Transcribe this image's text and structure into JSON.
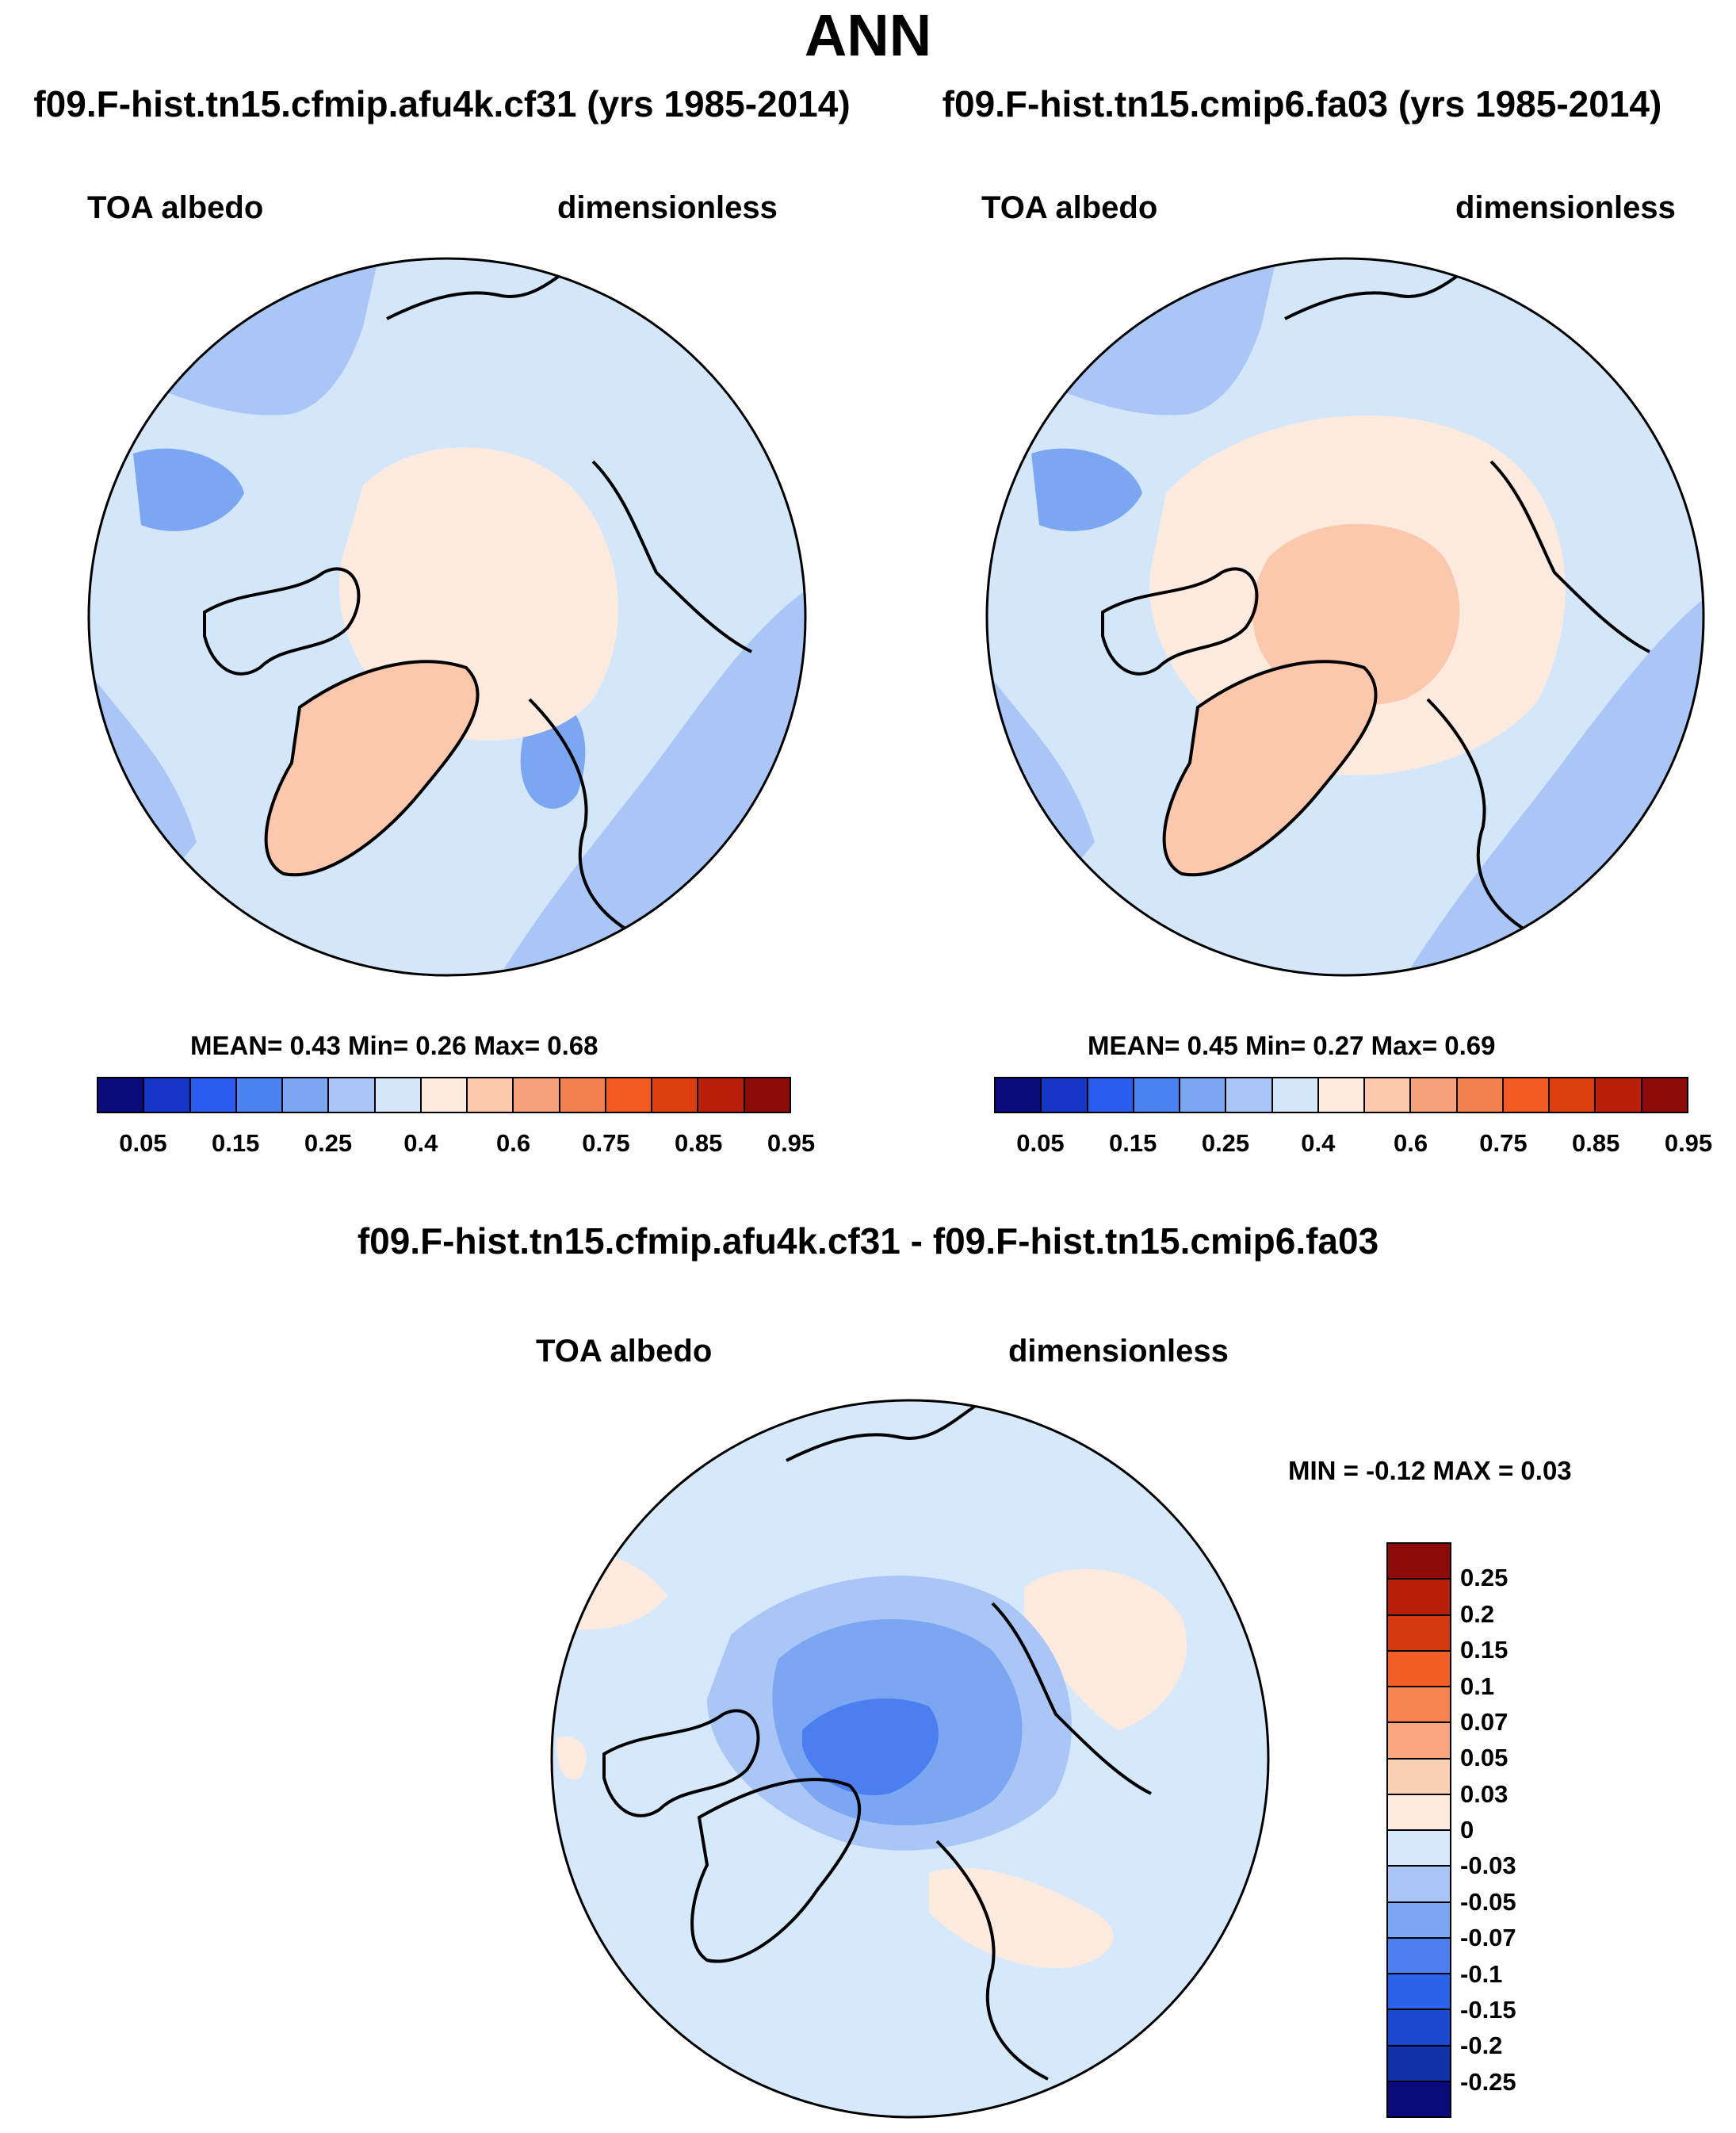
{
  "title": "ANN",
  "palette": [
    "#0a0a7c",
    "#1535c6",
    "#2a5cf0",
    "#4a82f0",
    "#7aa6f2",
    "#a9c6f7",
    "#d4e6fa",
    "#fdeadf",
    "#fbc8ae",
    "#f7a17c",
    "#f4804f",
    "#f25a22",
    "#dd3e0e",
    "#b8200c",
    "#8b0a0a"
  ],
  "diff_palette": [
    "#0a0a7c",
    "#1232a8",
    "#1a48d0",
    "#2a63ea",
    "#4b7fef",
    "#7ba6f2",
    "#aac6f7",
    "#d6e8fb",
    "#fdeadf",
    "#fbd0b5",
    "#f9a57f",
    "#f78450",
    "#f35d26",
    "#d43a0f",
    "#b8200c",
    "#8b0a0a"
  ],
  "panels": [
    {
      "case_title": "f09.F-hist.tn15.cfmip.afu4k.cf31 (yrs 1985-2014)",
      "field": "TOA albedo",
      "units": "dimensionless",
      "stats": "MEAN=   0.43  Min=   0.26  Max=   0.68"
    },
    {
      "case_title": "f09.F-hist.tn15.cmip6.fa03 (yrs 1985-2014)",
      "field": "TOA albedo",
      "units": "dimensionless",
      "stats": "MEAN=   0.45  Min=   0.27  Max=   0.69"
    }
  ],
  "colorbar_ticks": [
    "0.05",
    "0.15",
    "0.25",
    "0.4",
    "0.6",
    "0.75",
    "0.85",
    "0.95"
  ],
  "diff": {
    "title": "f09.F-hist.tn15.cfmip.afu4k.cf31 - f09.F-hist.tn15.cmip6.fa03",
    "field": "TOA albedo",
    "units": "dimensionless",
    "stats": "MIN =  -0.12 MAX =   0.03",
    "ticks": [
      "0.25",
      "0.2",
      "0.15",
      "0.1",
      "0.07",
      "0.05",
      "0.03",
      "0",
      "-0.03",
      "-0.05",
      "-0.07",
      "-0.1",
      "-0.15",
      "-0.2",
      "-0.25"
    ]
  }
}
